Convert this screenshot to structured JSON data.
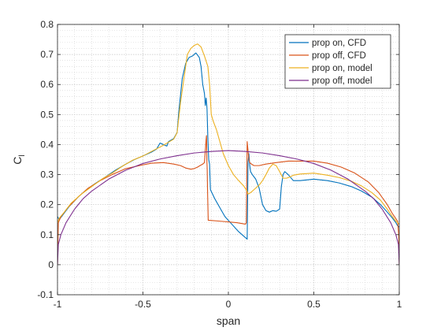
{
  "chart_data": {
    "type": "line",
    "xlabel": "span",
    "ylabel": "C",
    "ylabel_sub": "l",
    "xlim": [
      -1,
      1
    ],
    "ylim": [
      -0.1,
      0.8
    ],
    "xticks": [
      -1,
      -0.5,
      0,
      0.5,
      1
    ],
    "yticks": [
      -0.1,
      0,
      0.1,
      0.2,
      0.3,
      0.4,
      0.5,
      0.6,
      0.7,
      0.8
    ],
    "xtick_labels": [
      "-1",
      "-0.5",
      "0",
      "0.5",
      "1"
    ],
    "ytick_labels": [
      "-0.1",
      "0",
      "0.1",
      "0.2",
      "0.3",
      "0.4",
      "0.5",
      "0.6",
      "0.7",
      "0.8"
    ],
    "grid": true,
    "minor_grid": true,
    "legend_position": "top-right",
    "series": [
      {
        "name": "prop on, CFD",
        "color": "#0072bd",
        "points": [
          [
            -1,
            0.16
          ],
          [
            -0.99,
            0.15
          ],
          [
            -0.97,
            0.165
          ],
          [
            -0.93,
            0.195
          ],
          [
            -0.88,
            0.225
          ],
          [
            -0.83,
            0.25
          ],
          [
            -0.78,
            0.27
          ],
          [
            -0.72,
            0.292
          ],
          [
            -0.66,
            0.315
          ],
          [
            -0.6,
            0.335
          ],
          [
            -0.55,
            0.35
          ],
          [
            -0.5,
            0.362
          ],
          [
            -0.45,
            0.375
          ],
          [
            -0.42,
            0.385
          ],
          [
            -0.4,
            0.405
          ],
          [
            -0.38,
            0.4
          ],
          [
            -0.36,
            0.395
          ],
          [
            -0.35,
            0.41
          ],
          [
            -0.32,
            0.42
          ],
          [
            -0.3,
            0.44
          ],
          [
            -0.29,
            0.51
          ],
          [
            -0.27,
            0.62
          ],
          [
            -0.25,
            0.67
          ],
          [
            -0.23,
            0.69
          ],
          [
            -0.21,
            0.695
          ],
          [
            -0.19,
            0.705
          ],
          [
            -0.17,
            0.69
          ],
          [
            -0.16,
            0.66
          ],
          [
            -0.15,
            0.6
          ],
          [
            -0.14,
            0.57
          ],
          [
            -0.135,
            0.53
          ],
          [
            -0.13,
            0.555
          ],
          [
            -0.125,
            0.52
          ],
          [
            -0.12,
            0.42
          ],
          [
            -0.115,
            0.35
          ],
          [
            -0.11,
            0.335
          ],
          [
            -0.108,
            0.3
          ],
          [
            -0.105,
            0.25
          ],
          [
            -0.08,
            0.22
          ],
          [
            -0.05,
            0.19
          ],
          [
            -0.02,
            0.16
          ],
          [
            0.02,
            0.135
          ],
          [
            0.06,
            0.11
          ],
          [
            0.1,
            0.09
          ],
          [
            0.11,
            0.085
          ],
          [
            0.115,
            0.34
          ],
          [
            0.12,
            0.37
          ],
          [
            0.125,
            0.33
          ],
          [
            0.13,
            0.31
          ],
          [
            0.14,
            0.3
          ],
          [
            0.16,
            0.285
          ],
          [
            0.18,
            0.255
          ],
          [
            0.2,
            0.2
          ],
          [
            0.22,
            0.18
          ],
          [
            0.24,
            0.175
          ],
          [
            0.26,
            0.18
          ],
          [
            0.28,
            0.178
          ],
          [
            0.3,
            0.185
          ],
          [
            0.31,
            0.26
          ],
          [
            0.32,
            0.3
          ],
          [
            0.33,
            0.31
          ],
          [
            0.35,
            0.3
          ],
          [
            0.38,
            0.28
          ],
          [
            0.42,
            0.28
          ],
          [
            0.5,
            0.285
          ],
          [
            0.58,
            0.28
          ],
          [
            0.65,
            0.272
          ],
          [
            0.72,
            0.26
          ],
          [
            0.78,
            0.245
          ],
          [
            0.84,
            0.225
          ],
          [
            0.89,
            0.2
          ],
          [
            0.93,
            0.175
          ],
          [
            0.96,
            0.155
          ],
          [
            0.98,
            0.14
          ],
          [
            0.99,
            0.13
          ],
          [
            1,
            0.125
          ]
        ]
      },
      {
        "name": "prop off, CFD",
        "color": "#d95319",
        "points": [
          [
            -1,
            0.0
          ],
          [
            -0.995,
            0.14
          ],
          [
            -0.98,
            0.16
          ],
          [
            -0.94,
            0.19
          ],
          [
            -0.88,
            0.225
          ],
          [
            -0.82,
            0.255
          ],
          [
            -0.75,
            0.28
          ],
          [
            -0.68,
            0.3
          ],
          [
            -0.6,
            0.32
          ],
          [
            -0.52,
            0.33
          ],
          [
            -0.45,
            0.338
          ],
          [
            -0.38,
            0.34
          ],
          [
            -0.32,
            0.335
          ],
          [
            -0.28,
            0.33
          ],
          [
            -0.25,
            0.322
          ],
          [
            -0.22,
            0.318
          ],
          [
            -0.2,
            0.32
          ],
          [
            -0.18,
            0.325
          ],
          [
            -0.16,
            0.332
          ],
          [
            -0.15,
            0.335
          ],
          [
            -0.14,
            0.34
          ],
          [
            -0.13,
            0.42
          ],
          [
            -0.128,
            0.43
          ],
          [
            -0.126,
            0.35
          ],
          [
            -0.124,
            0.32
          ],
          [
            -0.122,
            0.25
          ],
          [
            -0.12,
            0.2
          ],
          [
            -0.118,
            0.148
          ],
          [
            -0.05,
            0.145
          ],
          [
            0.05,
            0.14
          ],
          [
            0.1,
            0.135
          ],
          [
            0.105,
            0.14
          ],
          [
            0.11,
            0.41
          ],
          [
            0.115,
            0.38
          ],
          [
            0.12,
            0.35
          ],
          [
            0.125,
            0.34
          ],
          [
            0.135,
            0.335
          ],
          [
            0.15,
            0.33
          ],
          [
            0.18,
            0.33
          ],
          [
            0.22,
            0.335
          ],
          [
            0.28,
            0.34
          ],
          [
            0.35,
            0.345
          ],
          [
            0.42,
            0.345
          ],
          [
            0.5,
            0.345
          ],
          [
            0.58,
            0.338
          ],
          [
            0.66,
            0.325
          ],
          [
            0.74,
            0.305
          ],
          [
            0.82,
            0.275
          ],
          [
            0.88,
            0.24
          ],
          [
            0.93,
            0.2
          ],
          [
            0.96,
            0.17
          ],
          [
            0.99,
            0.145
          ],
          [
            0.997,
            0.1
          ],
          [
            1,
            0.0
          ]
        ]
      },
      {
        "name": "prop on, model",
        "color": "#edb120",
        "points": [
          [
            -1,
            0.14
          ],
          [
            -0.99,
            0.155
          ],
          [
            -0.96,
            0.175
          ],
          [
            -0.92,
            0.205
          ],
          [
            -0.86,
            0.235
          ],
          [
            -0.8,
            0.26
          ],
          [
            -0.74,
            0.285
          ],
          [
            -0.68,
            0.305
          ],
          [
            -0.62,
            0.328
          ],
          [
            -0.56,
            0.348
          ],
          [
            -0.5,
            0.362
          ],
          [
            -0.44,
            0.38
          ],
          [
            -0.38,
            0.398
          ],
          [
            -0.32,
            0.418
          ],
          [
            -0.3,
            0.44
          ],
          [
            -0.28,
            0.54
          ],
          [
            -0.26,
            0.62
          ],
          [
            -0.24,
            0.7
          ],
          [
            -0.22,
            0.72
          ],
          [
            -0.2,
            0.73
          ],
          [
            -0.18,
            0.735
          ],
          [
            -0.16,
            0.725
          ],
          [
            -0.14,
            0.695
          ],
          [
            -0.12,
            0.66
          ],
          [
            -0.11,
            0.6
          ],
          [
            -0.1,
            0.5
          ],
          [
            -0.09,
            0.48
          ],
          [
            -0.07,
            0.45
          ],
          [
            -0.05,
            0.41
          ],
          [
            -0.03,
            0.37
          ],
          [
            0.0,
            0.33
          ],
          [
            0.03,
            0.3
          ],
          [
            0.06,
            0.28
          ],
          [
            0.09,
            0.262
          ],
          [
            0.11,
            0.245
          ],
          [
            0.115,
            0.235
          ],
          [
            0.13,
            0.24
          ],
          [
            0.15,
            0.25
          ],
          [
            0.18,
            0.265
          ],
          [
            0.2,
            0.28
          ],
          [
            0.22,
            0.3
          ],
          [
            0.24,
            0.322
          ],
          [
            0.26,
            0.335
          ],
          [
            0.28,
            0.33
          ],
          [
            0.3,
            0.31
          ],
          [
            0.32,
            0.288
          ],
          [
            0.34,
            0.288
          ],
          [
            0.36,
            0.292
          ],
          [
            0.38,
            0.298
          ],
          [
            0.42,
            0.302
          ],
          [
            0.5,
            0.305
          ],
          [
            0.58,
            0.298
          ],
          [
            0.65,
            0.29
          ],
          [
            0.72,
            0.278
          ],
          [
            0.78,
            0.262
          ],
          [
            0.84,
            0.24
          ],
          [
            0.89,
            0.215
          ],
          [
            0.93,
            0.185
          ],
          [
            0.96,
            0.16
          ],
          [
            0.98,
            0.145
          ],
          [
            0.99,
            0.14
          ],
          [
            1,
            0.135
          ]
        ]
      },
      {
        "name": "prop off, model",
        "color": "#7e2f8e",
        "points": [
          [
            -1,
            0.0
          ],
          [
            -0.995,
            0.068
          ],
          [
            -0.98,
            0.1
          ],
          [
            -0.95,
            0.14
          ],
          [
            -0.9,
            0.185
          ],
          [
            -0.85,
            0.22
          ],
          [
            -0.8,
            0.245
          ],
          [
            -0.7,
            0.285
          ],
          [
            -0.6,
            0.315
          ],
          [
            -0.5,
            0.337
          ],
          [
            -0.4,
            0.352
          ],
          [
            -0.3,
            0.363
          ],
          [
            -0.2,
            0.372
          ],
          [
            -0.1,
            0.377
          ],
          [
            0.0,
            0.38
          ],
          [
            0.1,
            0.377
          ],
          [
            0.2,
            0.372
          ],
          [
            0.3,
            0.363
          ],
          [
            0.4,
            0.352
          ],
          [
            0.5,
            0.337
          ],
          [
            0.6,
            0.315
          ],
          [
            0.7,
            0.285
          ],
          [
            0.8,
            0.245
          ],
          [
            0.85,
            0.22
          ],
          [
            0.9,
            0.185
          ],
          [
            0.95,
            0.14
          ],
          [
            0.98,
            0.1
          ],
          [
            0.995,
            0.068
          ],
          [
            1,
            0.0
          ]
        ]
      }
    ]
  }
}
